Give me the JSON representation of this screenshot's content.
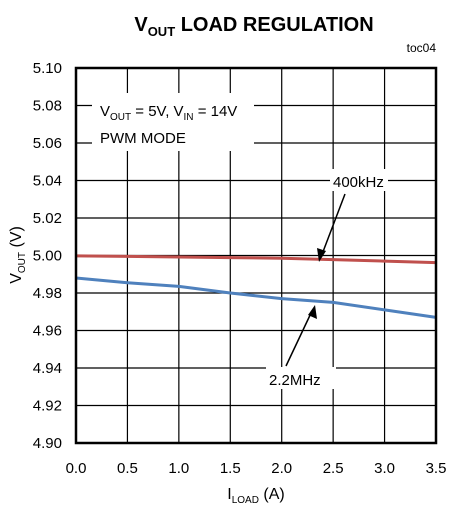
{
  "chart_data": {
    "type": "line",
    "title": {
      "main": "V",
      "sub": "OUT",
      "rest": " LOAD REGULATION"
    },
    "tag": "toc04",
    "xlabel": {
      "main": "I",
      "sub": "LOAD",
      "rest": " (A)"
    },
    "ylabel": {
      "main": "V",
      "sub": "OUT",
      "rest": " (V)"
    },
    "xlim": [
      0,
      3.5
    ],
    "ylim": [
      4.9,
      5.1
    ],
    "x_ticks": [
      "0.0",
      "0.5",
      "1.0",
      "1.5",
      "2.0",
      "2.5",
      "3.0",
      "3.5"
    ],
    "y_ticks": [
      "5.10",
      "5.08",
      "5.06",
      "5.04",
      "5.02",
      "5.00",
      "4.98",
      "4.96",
      "4.94",
      "4.92",
      "4.90"
    ],
    "grid": true,
    "conditions": {
      "line1": {
        "a": "V",
        "a_sub": "OUT",
        "b": " = 5V, V",
        "b_sub": "IN",
        "c": " = 14V"
      },
      "line2": "PWM MODE"
    },
    "series": [
      {
        "name": "400kHz",
        "color": "#c0504d",
        "x": [
          0,
          0.5,
          1.0,
          1.5,
          2.0,
          2.5,
          3.0,
          3.5
        ],
        "y": [
          4.9998,
          4.9995,
          4.9992,
          4.9989,
          4.9985,
          4.9978,
          4.997,
          4.9962
        ]
      },
      {
        "name": "2.2MHz",
        "color": "#4f81bd",
        "x": [
          0,
          0.5,
          1.0,
          1.5,
          2.0,
          2.5,
          3.0,
          3.5
        ],
        "y": [
          4.988,
          4.9855,
          4.9835,
          4.98,
          4.977,
          4.975,
          4.971,
          4.967
        ]
      }
    ]
  }
}
